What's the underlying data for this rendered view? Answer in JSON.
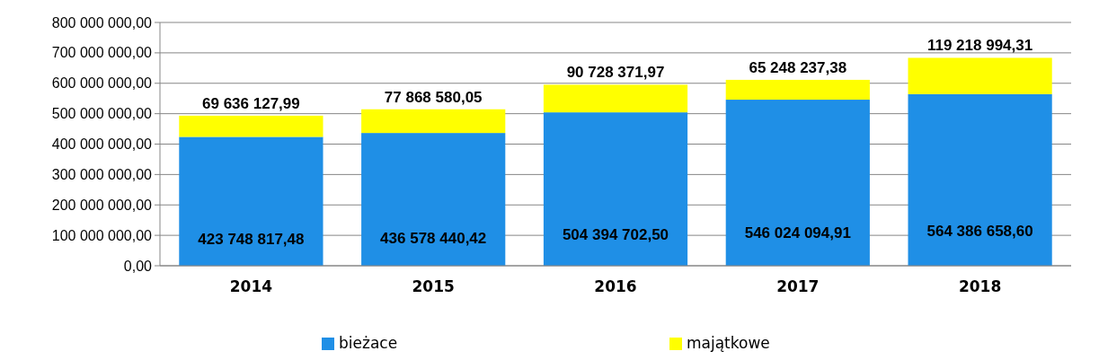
{
  "chart_data": {
    "type": "bar",
    "stacked": true,
    "categories": [
      "2014",
      "2015",
      "2016",
      "2017",
      "2018"
    ],
    "series": [
      {
        "name": "bieżace",
        "color": "#1f8fe6",
        "values": [
          423748817.48,
          436578440.42,
          504394702.5,
          546024094.91,
          564386658.6
        ],
        "value_labels": [
          "423 748 817,48",
          "436 578 440,42",
          "504 394 702,50",
          "546 024 094,91",
          "564 386 658,60"
        ]
      },
      {
        "name": "majątkowe",
        "color": "#ffff00",
        "values": [
          69636127.99,
          77868580.05,
          90728371.97,
          65248237.38,
          119218994.31
        ],
        "value_labels": [
          "69 636 127,99",
          "77 868 580,05",
          "90 728 371,97",
          "65 248 237,38",
          "119 218 994,31"
        ]
      }
    ],
    "ylim": [
      0,
      800000000
    ],
    "yticks": [
      {
        "value": 0,
        "label": "0,00"
      },
      {
        "value": 100000000,
        "label": "100 000 000,00"
      },
      {
        "value": 200000000,
        "label": "200 000 000,00"
      },
      {
        "value": 300000000,
        "label": "300 000 000,00"
      },
      {
        "value": 400000000,
        "label": "400 000 000,00"
      },
      {
        "value": 500000000,
        "label": "500 000 000,00"
      },
      {
        "value": 600000000,
        "label": "600 000 000,00"
      },
      {
        "value": 700000000,
        "label": "700 000 000,00"
      },
      {
        "value": 800000000,
        "label": "800 000 000,00"
      }
    ],
    "grid": "y",
    "legend": "bottom"
  }
}
